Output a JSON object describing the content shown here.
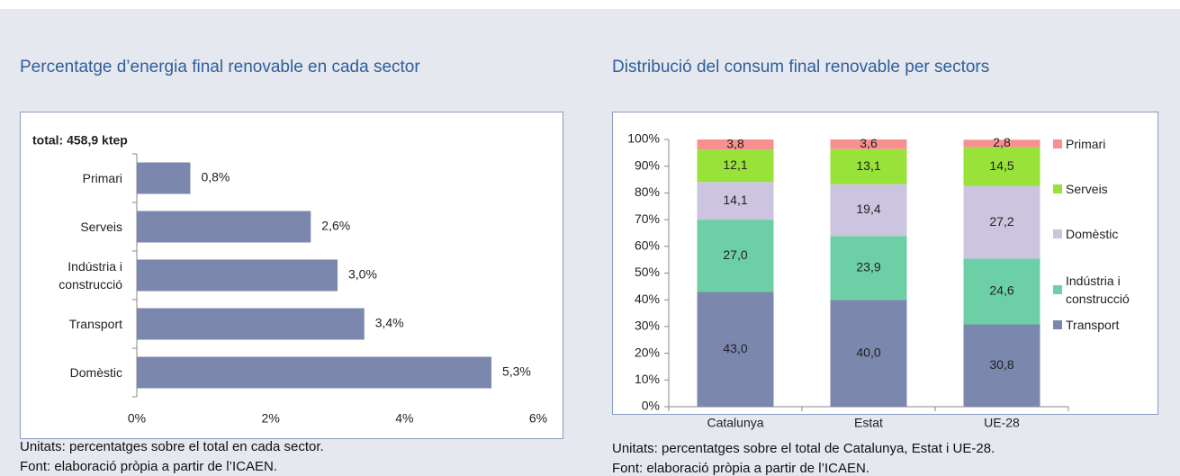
{
  "chart_data": [
    {
      "type": "bar",
      "orientation": "horizontal",
      "title": "Percentatge d’energia final renovable en cada sector",
      "subtitle": "total: 458,9 ktep",
      "categories": [
        "Primari",
        "Serveis",
        "Indústria i construcció",
        "Transport",
        "Domèstic"
      ],
      "values": [
        0.8,
        2.6,
        3.0,
        3.4,
        5.3
      ],
      "value_labels": [
        "0,8%",
        "2,6%",
        "3,0%",
        "3,4%",
        "5,3%"
      ],
      "color": "#7c87ad",
      "xlim": [
        0,
        6
      ],
      "xticks": [
        {
          "value": 0,
          "label": "0%"
        },
        {
          "value": 2,
          "label": "2%"
        },
        {
          "value": 4,
          "label": "4%"
        },
        {
          "value": 6,
          "label": "6%"
        }
      ],
      "notes": [
        "Unitats: percentatges sobre el total en cada sector.",
        "Font: elaboració pròpia a partir de l’ICAEN."
      ]
    },
    {
      "type": "stacked_bar",
      "title": "Distribució del consum final renovable per sectors",
      "categories": [
        "Catalunya",
        "Estat",
        "UE-28"
      ],
      "series": [
        {
          "name": "Transport",
          "color": "#7c87ad",
          "values": [
            43.0,
            40.0,
            30.8
          ],
          "value_labels": [
            "43,0",
            "40,0",
            "30,8"
          ]
        },
        {
          "name": "Indústria i construcció",
          "color": "#6ccfa6",
          "values": [
            27.0,
            23.9,
            24.6
          ],
          "value_labels": [
            "27,0",
            "23,9",
            "24,6"
          ]
        },
        {
          "name": "Domèstic",
          "color": "#cdc5df",
          "values": [
            14.1,
            19.4,
            27.2
          ],
          "value_labels": [
            "14,1",
            "19,4",
            "27,2"
          ]
        },
        {
          "name": "Serveis",
          "color": "#98e23a",
          "values": [
            12.1,
            13.1,
            14.5
          ],
          "value_labels": [
            "12,1",
            "13,1",
            "14,5"
          ]
        },
        {
          "name": "Primari",
          "color": "#f7908f",
          "values": [
            3.8,
            3.6,
            2.8
          ],
          "value_labels": [
            "3,8",
            "3,6",
            "2,8"
          ]
        }
      ],
      "legend": "right",
      "ylim": [
        0,
        100
      ],
      "yticks": [
        {
          "value": 0,
          "label": "0%"
        },
        {
          "value": 10,
          "label": "10%"
        },
        {
          "value": 20,
          "label": "20%"
        },
        {
          "value": 30,
          "label": "30%"
        },
        {
          "value": 40,
          "label": "40%"
        },
        {
          "value": 50,
          "label": "50%"
        },
        {
          "value": 60,
          "label": "60%"
        },
        {
          "value": 70,
          "label": "70%"
        },
        {
          "value": 80,
          "label": "80%"
        },
        {
          "value": 90,
          "label": "90%"
        },
        {
          "value": 100,
          "label": "100%"
        }
      ],
      "notes": [
        "Unitats: percentatges sobre el total de Catalunya, Estat i UE-28.",
        "Font: elaboració pròpia a partir de l’ICAEN."
      ]
    }
  ]
}
